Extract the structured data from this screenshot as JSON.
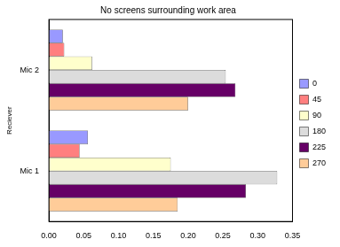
{
  "chart_data": {
    "type": "bar",
    "orientation": "horizontal",
    "title": "No screens surrounding work area",
    "y_label": "Reciever",
    "categories": [
      "Mic 2",
      "Mic 1"
    ],
    "series": [
      {
        "name": "0",
        "color": "#9999ff",
        "values": [
          0.02,
          0.056
        ]
      },
      {
        "name": "45",
        "color": "#ff7f7f",
        "values": [
          0.022,
          0.044
        ]
      },
      {
        "name": "90",
        "color": "#ffffcc",
        "values": [
          0.062,
          0.175
        ]
      },
      {
        "name": "180",
        "color": "#dcdcdc",
        "values": [
          0.254,
          0.328
        ]
      },
      {
        "name": "225",
        "color": "#660066",
        "values": [
          0.268,
          0.283
        ]
      },
      {
        "name": "270",
        "color": "#ffcc99",
        "values": [
          0.2,
          0.185
        ]
      }
    ],
    "xlim": [
      0,
      0.35
    ],
    "xticks": [
      {
        "value": 0,
        "label": "0.00"
      },
      {
        "value": 0.05,
        "label": "0.05"
      },
      {
        "value": 0.1,
        "label": "0.10"
      },
      {
        "value": 0.15,
        "label": "0.15"
      },
      {
        "value": 0.2,
        "label": "0.20"
      },
      {
        "value": 0.25,
        "label": "0.25"
      },
      {
        "value": 0.3,
        "label": "0.30"
      },
      {
        "value": 0.35,
        "label": "0.35"
      }
    ],
    "grid": false,
    "legend": "right"
  }
}
